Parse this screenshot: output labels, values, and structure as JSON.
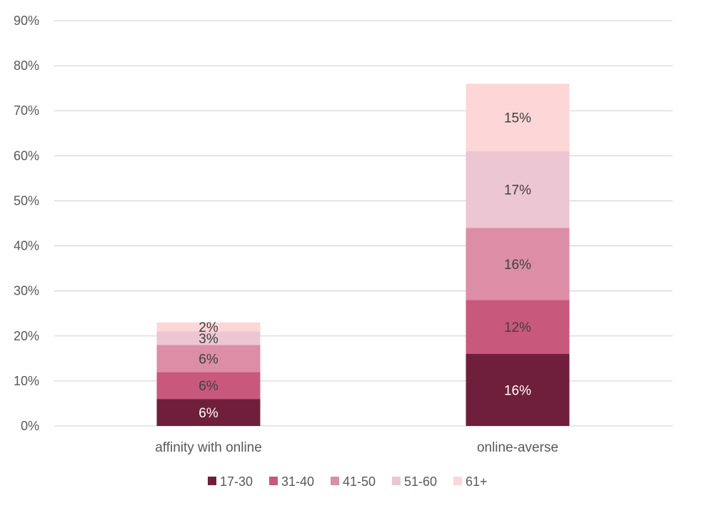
{
  "chart_data": {
    "type": "bar",
    "stacked": true,
    "categories": [
      "affinity with online",
      "online-averse"
    ],
    "series": [
      {
        "name": "17-30",
        "color": "#6F1F3B",
        "label_color": "#ffffff",
        "values": [
          6,
          16
        ],
        "labels": [
          "6%",
          "16%"
        ]
      },
      {
        "name": "31-40",
        "color": "#C9587D",
        "label_color": "#404040",
        "values": [
          6,
          12
        ],
        "labels": [
          "6%",
          "12%"
        ]
      },
      {
        "name": "41-50",
        "color": "#DC8EA6",
        "label_color": "#404040",
        "values": [
          6,
          16
        ],
        "labels": [
          "6%",
          "16%"
        ]
      },
      {
        "name": "51-60",
        "color": "#EDC6D3",
        "label_color": "#404040",
        "values": [
          3,
          17
        ],
        "labels": [
          "3%",
          "17%"
        ]
      },
      {
        "name": "61+",
        "color": "#FDD7D7",
        "label_color": "#404040",
        "values": [
          2,
          15
        ],
        "labels": [
          "2%",
          "15%"
        ]
      }
    ],
    "ylim": [
      0,
      90
    ],
    "yticks": [
      "0%",
      "10%",
      "20%",
      "30%",
      "40%",
      "50%",
      "60%",
      "70%",
      "80%",
      "90%"
    ],
    "grid": true,
    "legend_position": "bottom"
  }
}
